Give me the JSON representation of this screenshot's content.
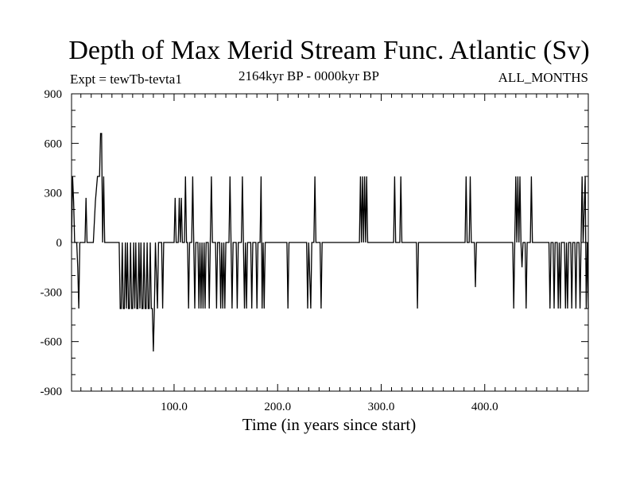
{
  "chart_data": {
    "type": "line",
    "title": "Depth of Max Merid Stream Func. Atlantic (Sv)",
    "experiment": "Expt = tewTb-tevta1",
    "period": "2164kyr BP - 0000kyr BP",
    "months": "ALL_MONTHS",
    "xlabel": "Time (in years since start)",
    "ylabel": "",
    "xlim": [
      1,
      500
    ],
    "ylim": [
      -900,
      900
    ],
    "x_ticks": [
      100,
      200,
      300,
      400
    ],
    "x_tick_labels": [
      "100.0",
      "200.0",
      "300.0",
      "400.0"
    ],
    "y_ticks": [
      -900,
      -600,
      -300,
      0,
      300,
      600,
      900
    ],
    "y_tick_labels": [
      "-900",
      "-600",
      "-300",
      "0",
      "300",
      "600",
      "900"
    ],
    "x_minor_step": 10,
    "y_minor_step": 100,
    "grid": false,
    "series": [
      {
        "name": "Depth of Max Merid Stream Func.",
        "points": [
          [
            1,
            0
          ],
          [
            2,
            400
          ],
          [
            3,
            250
          ],
          [
            4,
            0
          ],
          [
            6,
            0
          ],
          [
            7,
            -150
          ],
          [
            8,
            -400
          ],
          [
            9,
            0
          ],
          [
            14,
            0
          ],
          [
            15,
            270
          ],
          [
            16,
            0
          ],
          [
            22,
            0
          ],
          [
            24,
            250
          ],
          [
            26,
            400
          ],
          [
            28,
            400
          ],
          [
            29,
            660
          ],
          [
            30,
            660
          ],
          [
            31,
            0
          ],
          [
            32,
            400
          ],
          [
            33,
            0
          ],
          [
            47,
            0
          ],
          [
            48,
            -400
          ],
          [
            49,
            -400
          ],
          [
            50,
            0
          ],
          [
            51,
            -400
          ],
          [
            52,
            -400
          ],
          [
            53,
            0
          ],
          [
            54,
            -400
          ],
          [
            55,
            0
          ],
          [
            56,
            -400
          ],
          [
            57,
            -400
          ],
          [
            58,
            0
          ],
          [
            59,
            -400
          ],
          [
            60,
            -400
          ],
          [
            61,
            0
          ],
          [
            62,
            -400
          ],
          [
            63,
            0
          ],
          [
            64,
            -400
          ],
          [
            65,
            -400
          ],
          [
            66,
            0
          ],
          [
            67,
            -400
          ],
          [
            68,
            0
          ],
          [
            69,
            -400
          ],
          [
            70,
            -400
          ],
          [
            71,
            0
          ],
          [
            72,
            -400
          ],
          [
            73,
            -400
          ],
          [
            74,
            0
          ],
          [
            75,
            -400
          ],
          [
            76,
            -400
          ],
          [
            77,
            0
          ],
          [
            78,
            -400
          ],
          [
            79,
            -400
          ],
          [
            80,
            -660
          ],
          [
            81,
            -400
          ],
          [
            82,
            0
          ],
          [
            84,
            -400
          ],
          [
            85,
            0
          ],
          [
            88,
            0
          ],
          [
            89,
            -400
          ],
          [
            90,
            0
          ],
          [
            100,
            0
          ],
          [
            101,
            270
          ],
          [
            102,
            0
          ],
          [
            104,
            0
          ],
          [
            105,
            270
          ],
          [
            106,
            0
          ],
          [
            107,
            270
          ],
          [
            108,
            0
          ],
          [
            110,
            0
          ],
          [
            111,
            400
          ],
          [
            112,
            0
          ],
          [
            113,
            0
          ],
          [
            114,
            -400
          ],
          [
            115,
            0
          ],
          [
            117,
            0
          ],
          [
            118,
            400
          ],
          [
            119,
            0
          ],
          [
            120,
            -400
          ],
          [
            121,
            0
          ],
          [
            123,
            0
          ],
          [
            124,
            -400
          ],
          [
            125,
            0
          ],
          [
            126,
            -400
          ],
          [
            127,
            0
          ],
          [
            128,
            -400
          ],
          [
            129,
            0
          ],
          [
            130,
            -400
          ],
          [
            131,
            0
          ],
          [
            133,
            0
          ],
          [
            134,
            -400
          ],
          [
            135,
            0
          ],
          [
            136,
            400
          ],
          [
            137,
            0
          ],
          [
            140,
            0
          ],
          [
            141,
            -400
          ],
          [
            142,
            0
          ],
          [
            144,
            0
          ],
          [
            145,
            -400
          ],
          [
            146,
            0
          ],
          [
            147,
            -400
          ],
          [
            148,
            0
          ],
          [
            149,
            -400
          ],
          [
            150,
            0
          ],
          [
            153,
            0
          ],
          [
            154,
            400
          ],
          [
            155,
            0
          ],
          [
            156,
            -400
          ],
          [
            157,
            0
          ],
          [
            160,
            0
          ],
          [
            161,
            -400
          ],
          [
            162,
            0
          ],
          [
            165,
            0
          ],
          [
            166,
            400
          ],
          [
            167,
            0
          ],
          [
            168,
            -400
          ],
          [
            169,
            0
          ],
          [
            170,
            -400
          ],
          [
            171,
            0
          ],
          [
            174,
            0
          ],
          [
            175,
            -400
          ],
          [
            176,
            0
          ],
          [
            179,
            0
          ],
          [
            180,
            -400
          ],
          [
            181,
            0
          ],
          [
            183,
            0
          ],
          [
            184,
            400
          ],
          [
            185,
            -400
          ],
          [
            186,
            0
          ],
          [
            187,
            -400
          ],
          [
            188,
            0
          ],
          [
            209,
            0
          ],
          [
            210,
            -400
          ],
          [
            211,
            0
          ],
          [
            228,
            0
          ],
          [
            229,
            -400
          ],
          [
            230,
            0
          ],
          [
            232,
            -400
          ],
          [
            233,
            0
          ],
          [
            235,
            0
          ],
          [
            236,
            400
          ],
          [
            237,
            0
          ],
          [
            241,
            0
          ],
          [
            242,
            -400
          ],
          [
            243,
            0
          ],
          [
            279,
            0
          ],
          [
            280,
            400
          ],
          [
            281,
            0
          ],
          [
            282,
            400
          ],
          [
            283,
            0
          ],
          [
            284,
            400
          ],
          [
            285,
            0
          ],
          [
            286,
            400
          ],
          [
            287,
            0
          ],
          [
            312,
            0
          ],
          [
            313,
            400
          ],
          [
            314,
            0
          ],
          [
            318,
            0
          ],
          [
            319,
            400
          ],
          [
            320,
            0
          ],
          [
            334,
            0
          ],
          [
            335,
            -400
          ],
          [
            336,
            0
          ],
          [
            381,
            0
          ],
          [
            382,
            400
          ],
          [
            383,
            0
          ],
          [
            385,
            0
          ],
          [
            386,
            400
          ],
          [
            387,
            0
          ],
          [
            390,
            0
          ],
          [
            391,
            -270
          ],
          [
            392,
            0
          ],
          [
            427,
            0
          ],
          [
            428,
            -400
          ],
          [
            429,
            0
          ],
          [
            430,
            400
          ],
          [
            431,
            0
          ],
          [
            432,
            400
          ],
          [
            433,
            0
          ],
          [
            434,
            400
          ],
          [
            435,
            0
          ],
          [
            436,
            -150
          ],
          [
            437,
            0
          ],
          [
            439,
            0
          ],
          [
            440,
            -400
          ],
          [
            441,
            0
          ],
          [
            444,
            0
          ],
          [
            445,
            400
          ],
          [
            446,
            0
          ],
          [
            462,
            0
          ],
          [
            463,
            -400
          ],
          [
            464,
            0
          ],
          [
            466,
            0
          ],
          [
            467,
            -400
          ],
          [
            468,
            0
          ],
          [
            470,
            0
          ],
          [
            471,
            -400
          ],
          [
            472,
            0
          ],
          [
            473,
            -400
          ],
          [
            474,
            0
          ],
          [
            477,
            0
          ],
          [
            478,
            -400
          ],
          [
            479,
            0
          ],
          [
            480,
            -400
          ],
          [
            481,
            0
          ],
          [
            483,
            0
          ],
          [
            484,
            -400
          ],
          [
            485,
            0
          ],
          [
            487,
            0
          ],
          [
            488,
            -400
          ],
          [
            489,
            0
          ],
          [
            491,
            0
          ],
          [
            492,
            -400
          ],
          [
            493,
            0
          ],
          [
            494,
            400
          ],
          [
            495,
            0
          ],
          [
            497,
            400
          ],
          [
            498,
            -400
          ],
          [
            499,
            0
          ],
          [
            500,
            -400
          ]
        ]
      }
    ]
  }
}
